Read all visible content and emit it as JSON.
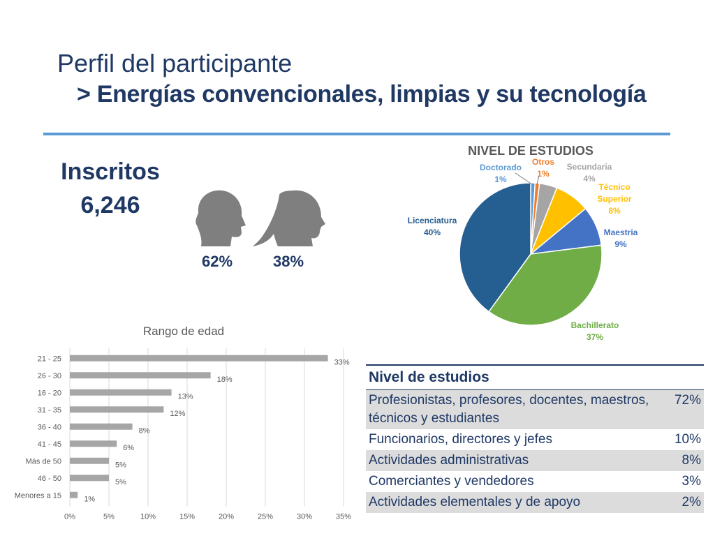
{
  "header": {
    "title": "Perfil del participante",
    "subtitle": "> Energías convencionales, limpias y su tecnología"
  },
  "summary": {
    "label": "Inscritos",
    "count": "6,246",
    "male_pct": "62%",
    "female_pct": "38%"
  },
  "chart_data": [
    {
      "type": "pie",
      "title": "NIVEL DE ESTUDIOS",
      "slices": [
        {
          "label": "Doctorado",
          "value": 1,
          "display": "1%",
          "color": "#5b9bd5"
        },
        {
          "label": "Otros",
          "value": 1,
          "display": "1%",
          "color": "#ed7d31"
        },
        {
          "label": "Secundaria",
          "value": 4,
          "display": "4%",
          "color": "#a5a5a5"
        },
        {
          "label": "Técnico Superior",
          "value": 8,
          "display": "8%",
          "color": "#ffc000"
        },
        {
          "label": "Maestria",
          "value": 9,
          "display": "9%",
          "color": "#4472c4"
        },
        {
          "label": "Bachillerato",
          "value": 37,
          "display": "37%",
          "color": "#70ad47"
        },
        {
          "label": "Licenciatura",
          "value": 40,
          "display": "40%",
          "color": "#255e91"
        }
      ]
    },
    {
      "type": "bar",
      "orientation": "horizontal",
      "title": "Rango de edad",
      "categories": [
        "21 - 25",
        "26 - 30",
        "16 - 20",
        "31 - 35",
        "36 - 40",
        "41 - 45",
        "Más de 50",
        "46 - 50",
        "Menores a 15"
      ],
      "values": [
        33,
        18,
        13,
        12,
        8,
        6,
        5,
        5,
        1
      ],
      "value_labels": [
        "33%",
        "18%",
        "13%",
        "12%",
        "8%",
        "6%",
        "5%",
        "5%",
        "1%"
      ],
      "xlim": [
        0,
        35
      ],
      "xticks": [
        "0%",
        "5%",
        "10%",
        "15%",
        "20%",
        "25%",
        "30%",
        "35%"
      ],
      "grid": true,
      "bar_color": "#a6a6a6"
    }
  ],
  "table": {
    "header": "Nivel de estudios",
    "rows": [
      {
        "label": "Profesionistas, profesores, docentes, maestros, técnicos y estudiantes",
        "value": "72%"
      },
      {
        "label": "Funcionarios, directores y jefes",
        "value": "10%"
      },
      {
        "label": "Actividades administrativas",
        "value": "8%"
      },
      {
        "label": "Comerciantes y vendedores",
        "value": "3%"
      },
      {
        "label": "Actividades elementales y de apoyo",
        "value": "2%"
      }
    ]
  },
  "colors": {
    "accent": "#5b9bd5",
    "text": "#1f3864",
    "icon": "#7f7f7f"
  }
}
